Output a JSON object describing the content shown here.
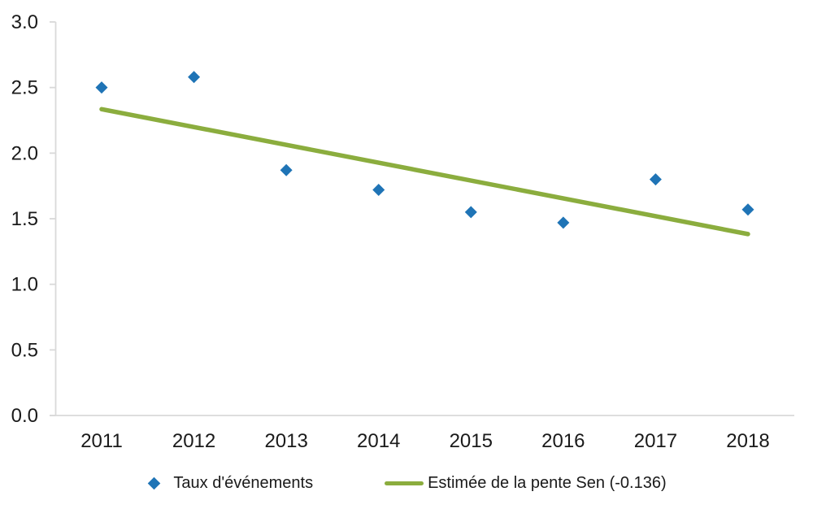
{
  "chart_data": {
    "type": "scatter",
    "title": "",
    "xlabel": "",
    "ylabel": "",
    "categories": [
      "2011",
      "2012",
      "2013",
      "2014",
      "2015",
      "2016",
      "2017",
      "2018"
    ],
    "series": [
      {
        "name": "Taux d'événements",
        "type": "scatter",
        "marker": "diamond",
        "color": "#1F74B6",
        "values": [
          2.5,
          2.58,
          1.87,
          1.72,
          1.55,
          1.47,
          1.8,
          1.57
        ]
      },
      {
        "name": "Estimée de la pente Sen (-0.136)",
        "type": "line",
        "color": "#8BAD3E",
        "slope": -0.136,
        "start_x": "2011",
        "start_y": 2.335,
        "end_x": "2018",
        "end_y": 1.383
      }
    ],
    "ylim": [
      0.0,
      3.0
    ],
    "ytick_step": 0.5,
    "ytick_labels": [
      "0.0",
      "0.5",
      "1.0",
      "1.5",
      "2.0",
      "2.5",
      "3.0"
    ],
    "grid": false,
    "legend_position": "bottom",
    "axis_color": "#D9D9D9",
    "text_color": "#1A1A1A"
  },
  "legend": {
    "items": [
      {
        "label": "Taux d'événements",
        "swatch": "diamond",
        "color": "#1F74B6"
      },
      {
        "label": "Estimée de la pente Sen (-0.136)",
        "swatch": "line",
        "color": "#8BAD3E"
      }
    ]
  }
}
